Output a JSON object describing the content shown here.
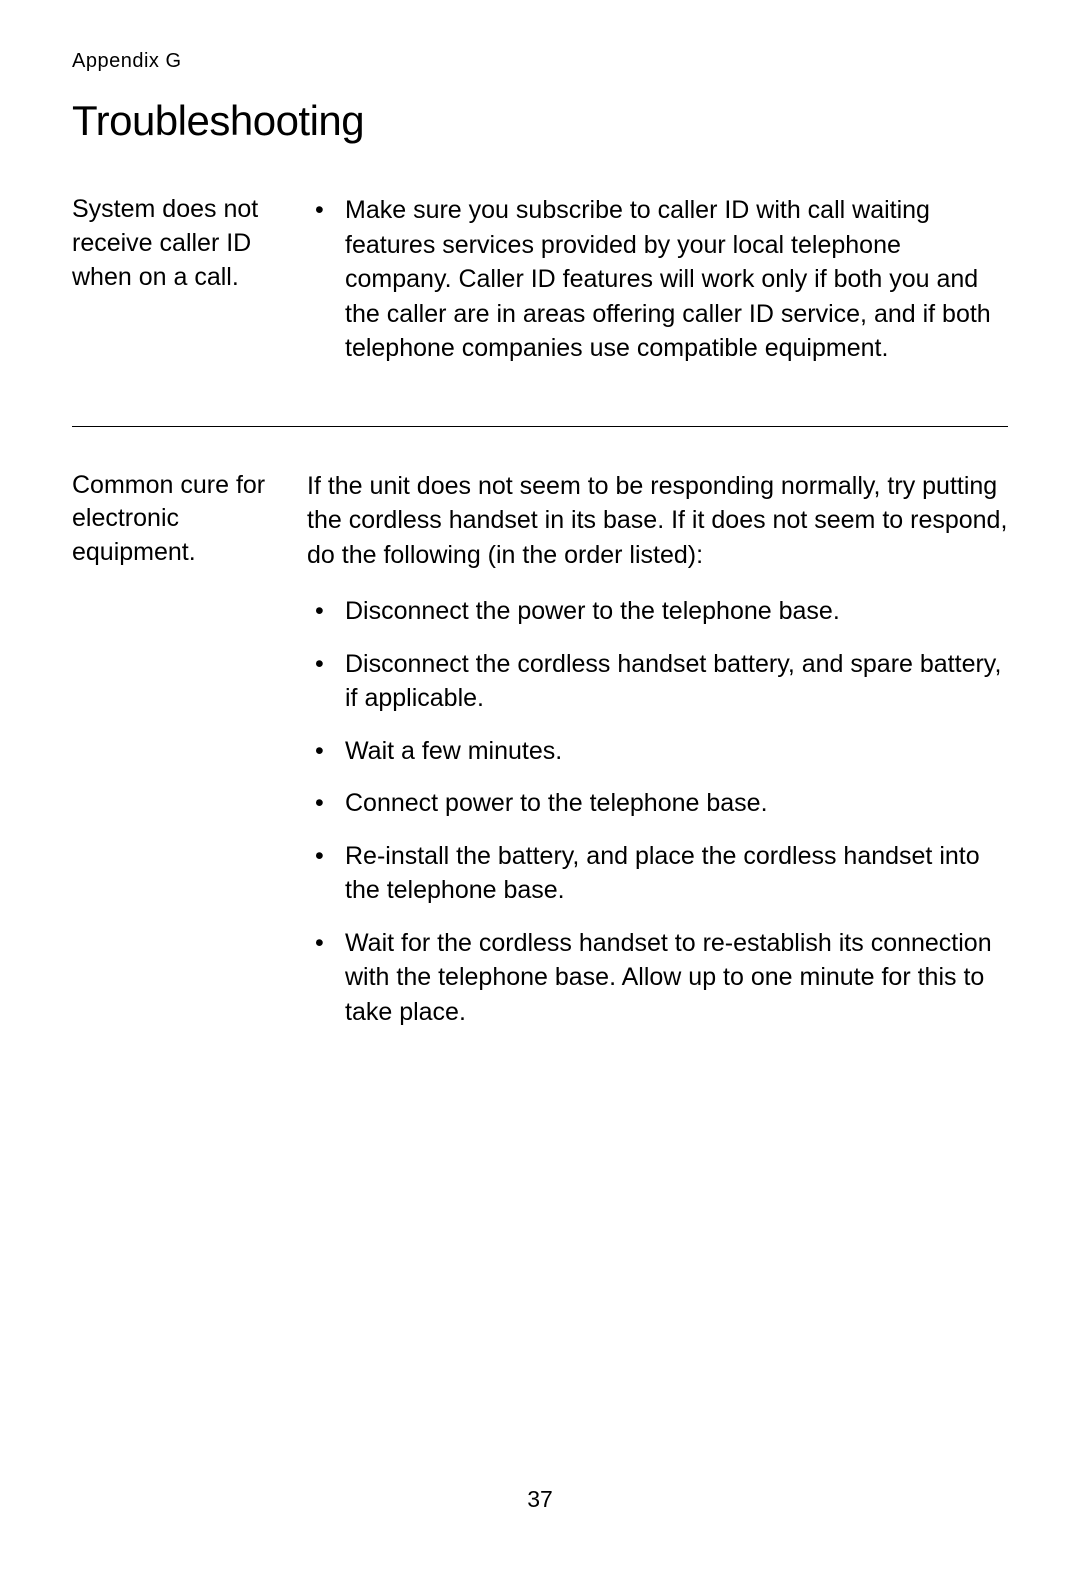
{
  "appendix_label": "Appendix G",
  "title": "Troubleshooting",
  "section1": {
    "problem": "System does not receive caller ID when on a call.",
    "bullets": [
      "Make sure you subscribe to caller ID with call waiting features services provided by your local telephone company. Caller ID features will work only if both you and the caller are in areas offering caller ID service, and if both telephone companies use compatible equipment."
    ]
  },
  "section2": {
    "problem": "Common cure for electronic equipment.",
    "intro": "If the unit does not seem to be responding normally, try putting the cordless handset in its base. If it does not seem to respond, do the following (in the order listed):",
    "bullets": [
      "Disconnect the power to the telephone base.",
      "Disconnect the cordless handset battery, and spare battery, if applicable.",
      "Wait a few minutes.",
      "Connect power to the telephone base.",
      "Re-install the battery, and place the cordless handset into the telephone base.",
      "Wait for the cordless handset to re-establish its connection with the telephone base. Allow up to one minute for this to take place."
    ]
  },
  "page_number": "37"
}
